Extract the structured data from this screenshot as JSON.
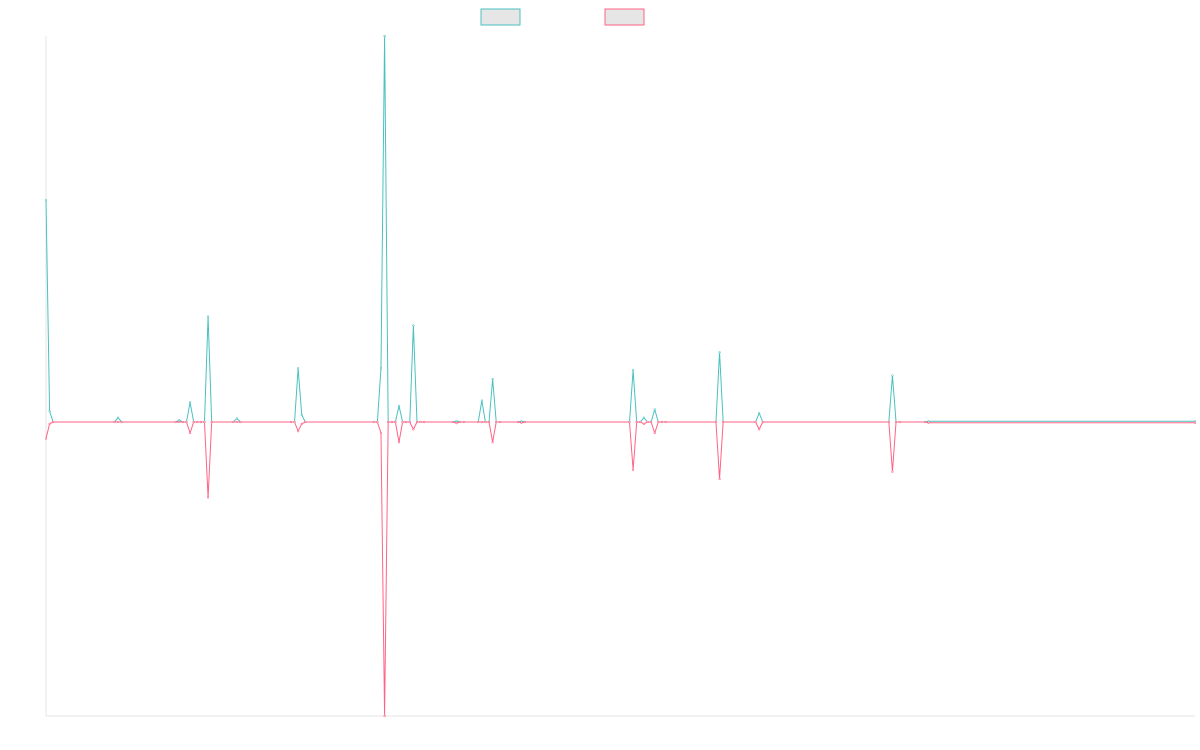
{
  "chart_data": {
    "type": "line",
    "title": "",
    "xlabel": "",
    "ylabel": "",
    "grid": false,
    "legend_position": "top-center",
    "x": [
      0,
      1,
      2,
      19,
      20,
      21,
      36,
      37,
      38,
      39,
      40,
      41,
      42,
      43,
      44,
      45,
      46,
      52,
      53,
      54,
      68,
      69,
      70,
      71,
      72,
      91,
      92,
      93,
      94,
      95,
      96,
      97,
      98,
      99,
      100,
      101,
      102,
      103,
      104,
      105,
      113,
      114,
      115,
      116,
      120,
      121,
      122,
      123,
      124,
      125,
      126,
      131,
      132,
      133,
      162,
      163,
      164,
      165,
      166,
      167,
      168,
      169,
      170,
      171,
      172,
      186,
      187,
      188,
      197,
      198,
      199,
      234,
      235,
      236,
      237,
      244,
      245,
      319
    ],
    "ylim": [
      -800,
      800
    ],
    "series": [
      {
        "color": "#4bc0c0",
        "values": [
          620,
          30,
          0,
          0,
          12,
          0,
          0,
          5,
          0,
          0,
          55,
          0,
          0,
          0,
          0,
          295,
          0,
          0,
          10,
          0,
          0,
          0,
          150,
          20,
          0,
          0,
          0,
          150,
          1080,
          0,
          0,
          0,
          45,
          0,
          0,
          0,
          270,
          0,
          0,
          0,
          0,
          3,
          0,
          0,
          0,
          60,
          0,
          0,
          120,
          0,
          0,
          0,
          2,
          0,
          0,
          145,
          0,
          0,
          12,
          0,
          0,
          35,
          0,
          0,
          0,
          0,
          195,
          0,
          0,
          25,
          0,
          0,
          130,
          0,
          0,
          0,
          2,
          2
        ]
      },
      {
        "color": "#ff6384",
        "values": [
          -45,
          -5,
          0,
          0,
          0,
          0,
          0,
          0,
          0,
          0,
          -30,
          0,
          0,
          0,
          0,
          -205,
          0,
          0,
          0,
          0,
          0,
          0,
          -25,
          -5,
          0,
          0,
          0,
          -30,
          -800,
          0,
          0,
          0,
          -55,
          0,
          0,
          0,
          -20,
          0,
          0,
          0,
          0,
          -3,
          0,
          0,
          0,
          0,
          0,
          0,
          -55,
          0,
          0,
          0,
          -2,
          0,
          0,
          -130,
          0,
          0,
          -5,
          0,
          0,
          -30,
          0,
          0,
          0,
          0,
          -155,
          0,
          0,
          -20,
          0,
          0,
          -135,
          0,
          0,
          0,
          -2,
          -2
        ]
      }
    ]
  }
}
